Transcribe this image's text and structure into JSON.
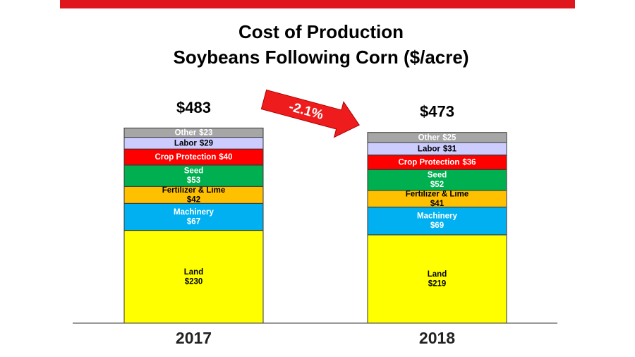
{
  "chart_data": {
    "type": "stacked_bar",
    "title": "Cost of Production",
    "subtitle": "Soybeans Following Corn ($/acre)",
    "annotation": "-2.1%",
    "categories": [
      "2017",
      "2018"
    ],
    "totals": [
      483,
      473
    ],
    "total_labels": [
      "$483",
      "$473"
    ],
    "series": [
      {
        "name": "Land",
        "color": "#ffff00",
        "values": [
          230,
          219
        ],
        "value_labels": [
          "$230",
          "$219"
        ]
      },
      {
        "name": "Machinery",
        "color": "#00b0f0",
        "values": [
          67,
          69
        ],
        "value_labels": [
          "$67",
          "$69"
        ]
      },
      {
        "name": "Fertilizer & Lime",
        "color": "#ffc000",
        "values": [
          42,
          41
        ],
        "value_labels": [
          "$42",
          "$41"
        ]
      },
      {
        "name": "Seed",
        "color": "#00b050",
        "values": [
          53,
          52
        ],
        "value_labels": [
          "$53",
          "$52"
        ]
      },
      {
        "name": "Crop Protection",
        "color": "#ff0000",
        "values": [
          40,
          36
        ],
        "value_labels": [
          "$40",
          "$36"
        ]
      },
      {
        "name": "Labor",
        "color": "#ccccff",
        "values": [
          29,
          31
        ],
        "value_labels": [
          "$29",
          "$31"
        ]
      },
      {
        "name": "Other",
        "color": "#a6a6a6",
        "values": [
          23,
          25
        ],
        "value_labels": [
          "$23",
          "$25"
        ]
      }
    ]
  }
}
